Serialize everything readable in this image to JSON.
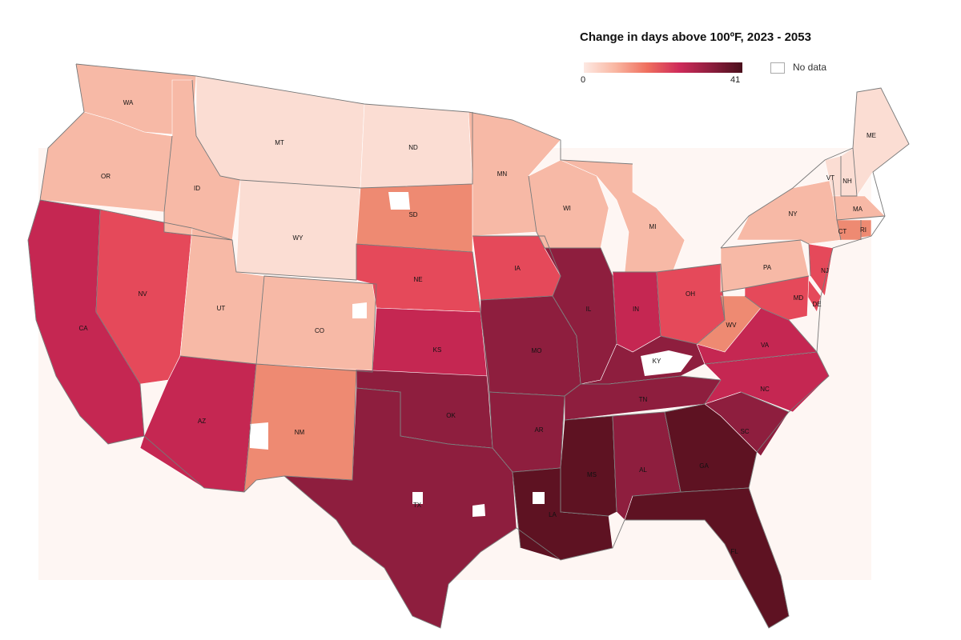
{
  "legend": {
    "title": "Change in days above 100ºF, 2023 - 2053",
    "min_label": "0",
    "max_label": "41",
    "nodata_label": "No data",
    "scale_colors": [
      "#fde9e3",
      "#f9b6a1",
      "#ef6f5e",
      "#cf2b5a",
      "#8e1e3e",
      "#4a0f1c"
    ]
  },
  "colors": {
    "background": "#fef6f3",
    "very_low": "#fbddd3",
    "low": "#f7b9a6",
    "mid_low": "#ee8a72",
    "mid": "#e5495a",
    "high": "#c52752",
    "very_high": "#8e1e3e",
    "extreme": "#5e1222",
    "no_data": "#ffffff"
  },
  "states": [
    {
      "abbr": "WA",
      "level": 1
    },
    {
      "abbr": "OR",
      "level": 1
    },
    {
      "abbr": "CA",
      "level": 4
    },
    {
      "abbr": "NV",
      "level": 3
    },
    {
      "abbr": "ID",
      "level": 1
    },
    {
      "abbr": "MT",
      "level": 0
    },
    {
      "abbr": "WY",
      "level": 0
    },
    {
      "abbr": "UT",
      "level": 1
    },
    {
      "abbr": "AZ",
      "level": 4
    },
    {
      "abbr": "CO",
      "level": 1
    },
    {
      "abbr": "NM",
      "level": 2
    },
    {
      "abbr": "ND",
      "level": 0
    },
    {
      "abbr": "SD",
      "level": 2
    },
    {
      "abbr": "NE",
      "level": 3
    },
    {
      "abbr": "KS",
      "level": 4
    },
    {
      "abbr": "OK",
      "level": 5
    },
    {
      "abbr": "TX",
      "level": 5
    },
    {
      "abbr": "MN",
      "level": 1
    },
    {
      "abbr": "IA",
      "level": 3
    },
    {
      "abbr": "MO",
      "level": 5
    },
    {
      "abbr": "AR",
      "level": 5
    },
    {
      "abbr": "LA",
      "level": 6
    },
    {
      "abbr": "WI",
      "level": 1
    },
    {
      "abbr": "IL",
      "level": 5
    },
    {
      "abbr": "MI",
      "level": 1
    },
    {
      "abbr": "IN",
      "level": 4
    },
    {
      "abbr": "OH",
      "level": 3
    },
    {
      "abbr": "KY",
      "level": 5
    },
    {
      "abbr": "TN",
      "level": 5
    },
    {
      "abbr": "MS",
      "level": 6
    },
    {
      "abbr": "AL",
      "level": 5
    },
    {
      "abbr": "GA",
      "level": 6
    },
    {
      "abbr": "FL",
      "level": 6
    },
    {
      "abbr": "SC",
      "level": 5
    },
    {
      "abbr": "NC",
      "level": 4
    },
    {
      "abbr": "VA",
      "level": 4
    },
    {
      "abbr": "WV",
      "level": 2
    },
    {
      "abbr": "PA",
      "level": 1
    },
    {
      "abbr": "NY",
      "level": 1
    },
    {
      "abbr": "VT",
      "level": 0
    },
    {
      "abbr": "NH",
      "level": 0
    },
    {
      "abbr": "ME",
      "level": 0
    },
    {
      "abbr": "MA",
      "level": 1
    },
    {
      "abbr": "CT",
      "level": 2
    },
    {
      "abbr": "RI",
      "level": 2
    },
    {
      "abbr": "NJ",
      "level": 3
    },
    {
      "abbr": "DE",
      "level": 3
    },
    {
      "abbr": "MD",
      "level": 3
    }
  ]
}
